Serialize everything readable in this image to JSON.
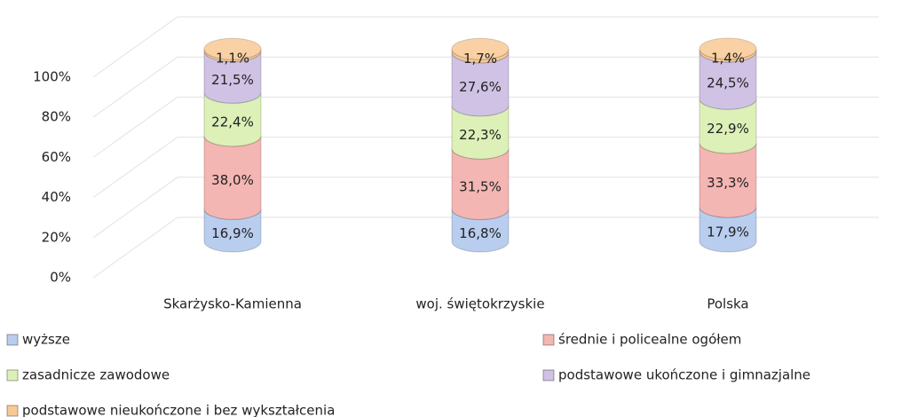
{
  "chart_data": {
    "type": "stacked-cylinder",
    "categories": [
      "Skarżysko-Kamienna",
      "woj. świętokrzyskie",
      "Polska"
    ],
    "series": [
      {
        "name": "wyższe",
        "color": "#b9cdee",
        "values": [
          16.9,
          16.8,
          17.9
        ],
        "value_labels": [
          "16,9%",
          "16,8%",
          "17,9%"
        ]
      },
      {
        "name": "średnie i policealne ogółem",
        "color": "#f4b6b3",
        "values": [
          38.0,
          31.5,
          33.3
        ],
        "value_labels": [
          "38,0%",
          "31,5%",
          "33,3%"
        ]
      },
      {
        "name": "zasadnicze zawodowe",
        "color": "#dcf0b8",
        "values": [
          22.4,
          22.3,
          22.9
        ],
        "value_labels": [
          "22,4%",
          "22,3%",
          "22,9%"
        ]
      },
      {
        "name": "podstawowe ukończone i gimnazjalne",
        "color": "#cfc2e4",
        "values": [
          21.5,
          27.6,
          24.5
        ],
        "value_labels": [
          "21,5%",
          "27,6%",
          "24,5%"
        ]
      },
      {
        "name": "podstawowe nieukończone i bez wykształcenia",
        "color": "#f9c995",
        "values": [
          1.1,
          1.7,
          1.4
        ],
        "value_labels": [
          "1,1%",
          "1,7%",
          "1,4%"
        ]
      }
    ],
    "ylim": [
      0,
      100
    ],
    "yticks": [
      {
        "value": 0,
        "label": "0%"
      },
      {
        "value": 20,
        "label": "20%"
      },
      {
        "value": 40,
        "label": "40%"
      },
      {
        "value": 60,
        "label": "60%"
      },
      {
        "value": 80,
        "label": "80%"
      },
      {
        "value": 100,
        "label": "100%"
      }
    ],
    "grid": true,
    "legend": "bottom"
  }
}
